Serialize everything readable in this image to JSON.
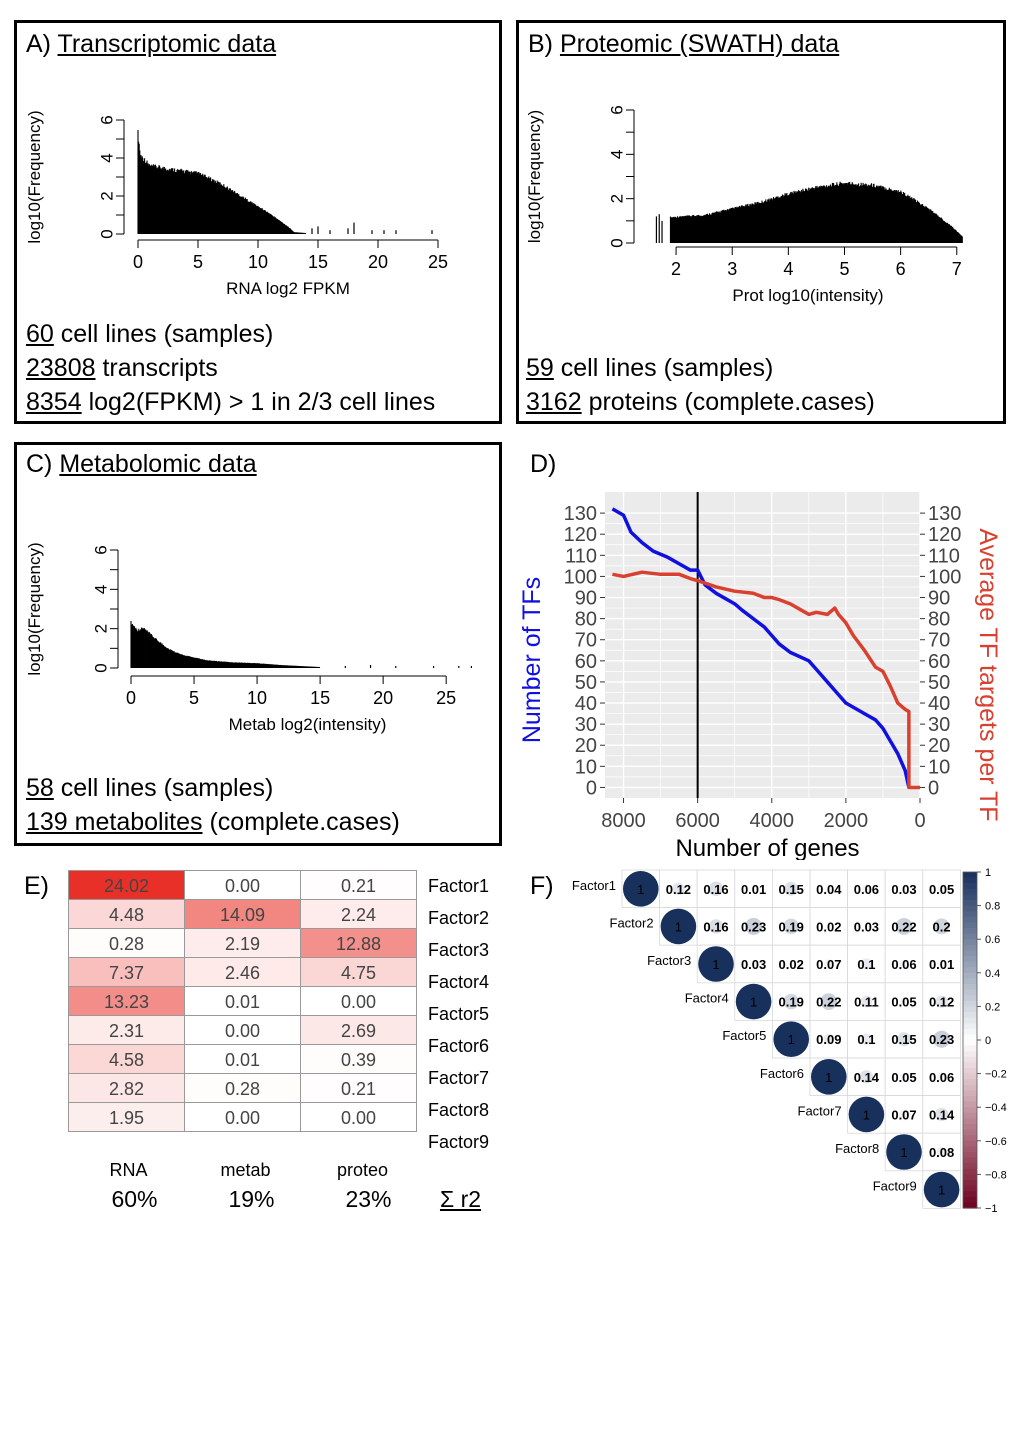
{
  "panel_a": {
    "letter": "A)",
    "title": "Transcriptomic data",
    "stats": [
      {
        "num": "60",
        "text": " cell lines (samples)"
      },
      {
        "num": "23808",
        "text": " transcripts"
      },
      {
        "num": "8354",
        "text": " log2(FPKM) > 1 in 2/3 cell lines"
      }
    ]
  },
  "panel_b": {
    "letter": "B)",
    "title": "Proteomic (SWATH) data",
    "stats": [
      {
        "num": "59",
        "text": " cell lines (samples)"
      },
      {
        "num": "3162",
        "text": " proteins (complete.cases)"
      }
    ]
  },
  "panel_c": {
    "letter": "C)",
    "title": "Metabolomic data",
    "stats": [
      {
        "num": "58",
        "text": " cell lines (samples)"
      },
      {
        "num": "139 metabolites",
        "text": " (complete.cases)"
      }
    ]
  },
  "panel_d": {
    "letter": "D)"
  },
  "panel_e": {
    "letter": "E)"
  },
  "panel_f": {
    "letter": "F)"
  },
  "chart_data": [
    {
      "id": "A",
      "type": "histogram",
      "xlabel": "RNA log2 FPKM",
      "ylabel": "log10(Frequency)",
      "xlim": [
        0,
        25
      ],
      "ylim": [
        0,
        6
      ],
      "x_ticks": [
        "0",
        "5",
        "10",
        "15",
        "20",
        "25"
      ],
      "y_ticks": [
        "0",
        "2",
        "4",
        "6"
      ],
      "profile": [
        [
          0,
          5.5
        ],
        [
          0.2,
          4.3
        ],
        [
          1,
          3.7
        ],
        [
          3,
          3.5
        ],
        [
          5,
          3.3
        ],
        [
          7,
          2.7
        ],
        [
          9,
          1.9
        ],
        [
          11,
          1.1
        ],
        [
          12.5,
          0.4
        ],
        [
          13,
          0.1
        ],
        [
          14,
          0.05
        ]
      ],
      "outliers": [
        [
          14.5,
          0.3
        ],
        [
          15,
          0.4
        ],
        [
          16,
          0.2
        ],
        [
          17.5,
          0.3
        ],
        [
          18,
          0.6
        ],
        [
          19.5,
          0.2
        ],
        [
          20.5,
          0.2
        ],
        [
          21.5,
          0.2
        ],
        [
          24.5,
          0.2
        ]
      ]
    },
    {
      "id": "B",
      "type": "histogram",
      "xlabel": "Prot log10(intensity)",
      "ylabel": "log10(Frequency)",
      "xlim": [
        1.5,
        7.2
      ],
      "ylim": [
        0,
        6
      ],
      "x_ticks": [
        "2",
        "3",
        "4",
        "5",
        "6",
        "7"
      ],
      "y_ticks": [
        "0",
        "2",
        "4",
        "6"
      ],
      "profile": [
        [
          1.9,
          1.2
        ],
        [
          2.5,
          1.3
        ],
        [
          3.0,
          1.6
        ],
        [
          3.5,
          1.9
        ],
        [
          4.0,
          2.3
        ],
        [
          4.5,
          2.6
        ],
        [
          5.0,
          2.8
        ],
        [
          5.5,
          2.7
        ],
        [
          6.0,
          2.4
        ],
        [
          6.5,
          1.6
        ],
        [
          6.9,
          0.8
        ],
        [
          7.1,
          0.3
        ]
      ],
      "outliers": [
        [
          1.65,
          1.2
        ],
        [
          1.7,
          1.3
        ],
        [
          1.75,
          1.0
        ]
      ]
    },
    {
      "id": "C",
      "type": "histogram",
      "xlabel": "Metab log2(intensity)",
      "ylabel": "log10(Frequency)",
      "xlim": [
        0,
        28
      ],
      "ylim": [
        0,
        6
      ],
      "x_ticks": [
        "0",
        "5",
        "10",
        "15",
        "20",
        "25"
      ],
      "y_ticks": [
        "0",
        "2",
        "4",
        "6"
      ],
      "profile": [
        [
          0,
          2.4
        ],
        [
          0.5,
          2.0
        ],
        [
          1,
          2.1
        ],
        [
          2,
          1.5
        ],
        [
          3,
          1.0
        ],
        [
          4,
          0.7
        ],
        [
          6,
          0.4
        ],
        [
          8,
          0.3
        ],
        [
          10,
          0.25
        ],
        [
          12,
          0.15
        ],
        [
          15,
          0.05
        ]
      ],
      "outliers": [
        [
          17,
          0.1
        ],
        [
          19,
          0.15
        ],
        [
          21,
          0.1
        ],
        [
          24,
          0.1
        ],
        [
          26,
          0.1
        ],
        [
          27,
          0.1
        ]
      ]
    },
    {
      "id": "D",
      "type": "line",
      "xlabel": "Number of genes",
      "ylabel_left": "Number of TFs",
      "ylabel_right": "Average TF targets per TF",
      "xlim": [
        8500,
        0
      ],
      "ylim": [
        -5,
        140
      ],
      "x_ticks": [
        "8000",
        "6000",
        "4000",
        "2000",
        "0"
      ],
      "y_ticks": [
        "0",
        "10",
        "20",
        "30",
        "40",
        "50",
        "60",
        "70",
        "80",
        "90",
        "100",
        "110",
        "120",
        "130"
      ],
      "vline_x": 6000,
      "series": [
        {
          "name": "Number of TFs",
          "color": "#1010e0",
          "x": [
            8300,
            8000,
            7800,
            7500,
            7200,
            6800,
            6500,
            6200,
            6000,
            5800,
            5500,
            5000,
            4800,
            4500,
            4200,
            4000,
            3800,
            3500,
            3000,
            2800,
            2500,
            2200,
            2000,
            1800,
            1500,
            1200,
            1000,
            800,
            600,
            400,
            300
          ],
          "y": [
            132,
            129,
            121,
            116,
            112,
            109,
            106,
            103,
            103,
            96,
            92,
            87,
            84,
            80,
            76,
            72,
            68,
            64,
            60,
            56,
            50,
            44,
            40,
            38,
            35,
            32,
            28,
            22,
            16,
            8,
            0
          ]
        },
        {
          "name": "Average TF targets per TF",
          "color": "#d94030",
          "x": [
            8300,
            8000,
            7500,
            7000,
            6500,
            6200,
            6000,
            5500,
            5000,
            4500,
            4200,
            4000,
            3800,
            3500,
            3200,
            3000,
            2800,
            2500,
            2300,
            2200,
            2000,
            1800,
            1500,
            1200,
            1000,
            800,
            600,
            400,
            300,
            300,
            0
          ],
          "y": [
            101,
            100,
            102,
            101,
            101,
            99,
            98,
            95,
            93,
            92,
            90,
            90,
            89,
            87,
            84,
            82,
            83,
            82,
            85,
            82,
            78,
            72,
            65,
            57,
            55,
            48,
            40,
            37,
            36,
            0,
            0
          ]
        }
      ]
    },
    {
      "id": "E",
      "type": "heatmap",
      "columns": [
        "RNA",
        "metab",
        "proteo"
      ],
      "rows": [
        "Factor1",
        "Factor2",
        "Factor3",
        "Factor4",
        "Factor5",
        "Factor6",
        "Factor7",
        "Factor8",
        "Factor9"
      ],
      "values": [
        [
          "24.02",
          "0.00",
          "0.21"
        ],
        [
          "4.48",
          "14.09",
          "2.24"
        ],
        [
          "0.28",
          "2.19",
          "12.88"
        ],
        [
          "7.37",
          "2.46",
          "4.75"
        ],
        [
          "13.23",
          "0.01",
          "0.00"
        ],
        [
          "2.31",
          "0.00",
          "2.69"
        ],
        [
          "4.58",
          "0.01",
          "0.39"
        ],
        [
          "2.82",
          "0.28",
          "0.21"
        ],
        [
          "1.95",
          "0.00",
          "0.00"
        ]
      ],
      "max": 24.02,
      "totals": [
        "60%",
        "19%",
        "23%"
      ],
      "totals_label": "Σ r2"
    },
    {
      "id": "F",
      "type": "correlation",
      "labels": [
        "Factor1",
        "Factor2",
        "Factor3",
        "Factor4",
        "Factor5",
        "Factor6",
        "Factor7",
        "Factor8",
        "Factor9"
      ],
      "upper": [
        [
          1,
          0.12,
          0.16,
          0.01,
          0.15,
          0.04,
          0.06,
          0.03,
          0.05
        ],
        [
          1,
          0.16,
          0.23,
          0.19,
          0.02,
          0.03,
          0.22,
          0.2
        ],
        [
          1,
          0.03,
          0.02,
          0.07,
          0.1,
          0.06,
          0.01
        ],
        [
          1,
          0.19,
          0.22,
          0.11,
          0.05,
          0.12
        ],
        [
          1,
          0.09,
          0.1,
          0.15,
          0.23
        ],
        [
          1,
          0.14,
          0.05,
          0.06
        ],
        [
          1,
          0.07,
          0.14
        ],
        [
          1,
          0.08
        ],
        [
          1
        ]
      ],
      "colorbar_ticks": [
        "1",
        "0.8",
        "0.6",
        "0.4",
        "0.2",
        "0",
        "−0.2",
        "−0.4",
        "−0.6",
        "−0.8",
        "−1"
      ]
    }
  ]
}
